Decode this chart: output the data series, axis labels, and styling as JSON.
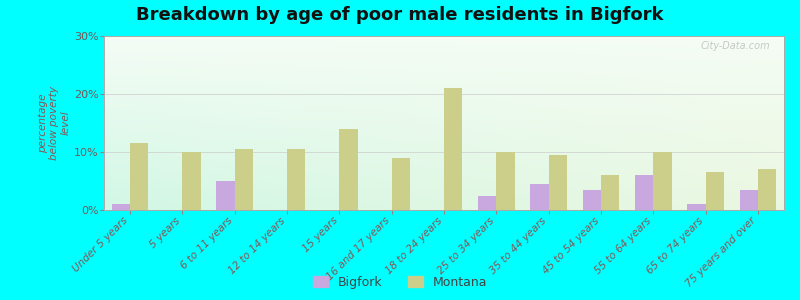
{
  "title": "Breakdown by age of poor male residents in Bigfork",
  "ylabel": "percentage\nbelow poverty\nlevel",
  "categories": [
    "Under 5 years",
    "5 years",
    "6 to 11 years",
    "12 to 14 years",
    "15 years",
    "16 and 17 years",
    "18 to 24 years",
    "25 to 34 years",
    "35 to 44 years",
    "45 to 54 years",
    "55 to 64 years",
    "65 to 74 years",
    "75 years and over"
  ],
  "bigfork_values": [
    1,
    0,
    5,
    0,
    0,
    0,
    0,
    2.5,
    4.5,
    3.5,
    6,
    1,
    3.5
  ],
  "montana_values": [
    11.5,
    10,
    10.5,
    10.5,
    14,
    9,
    21,
    10,
    9.5,
    6,
    10,
    6.5,
    7
  ],
  "bigfork_color": "#c9a8e0",
  "montana_color": "#cccf8a",
  "ylim": [
    0,
    30
  ],
  "yticks": [
    0,
    10,
    20,
    30
  ],
  "ytick_labels": [
    "0%",
    "10%",
    "20%",
    "30%"
  ],
  "outer_background": "#00ffff",
  "title_fontsize": 13,
  "bar_width": 0.35,
  "watermark": "City-Data.com"
}
